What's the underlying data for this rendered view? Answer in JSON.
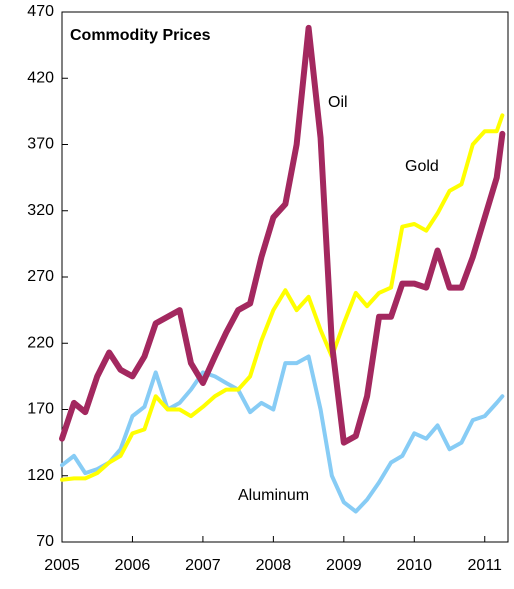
{
  "chart_data": {
    "type": "line",
    "title": "Commodity Prices",
    "x": [
      2005,
      2005.17,
      2005.33,
      2005.5,
      2005.67,
      2005.83,
      2006,
      2006.17,
      2006.33,
      2006.5,
      2006.67,
      2006.83,
      2007,
      2007.17,
      2007.33,
      2007.5,
      2007.67,
      2007.83,
      2008,
      2008.17,
      2008.33,
      2008.5,
      2008.67,
      2008.83,
      2009,
      2009.17,
      2009.33,
      2009.5,
      2009.67,
      2009.83,
      2010,
      2010.17,
      2010.33,
      2010.5,
      2010.67,
      2010.83,
      2011,
      2011.17,
      2011.25
    ],
    "series": [
      {
        "name": "Oil",
        "color": "#a3285f",
        "values": [
          148,
          175,
          168,
          195,
          213,
          200,
          195,
          210,
          235,
          240,
          245,
          205,
          190,
          210,
          228,
          245,
          250,
          285,
          315,
          325,
          370,
          458,
          375,
          220,
          145,
          150,
          180,
          240,
          240,
          265,
          265,
          262,
          290,
          262,
          262,
          285,
          315,
          345,
          378
        ]
      },
      {
        "name": "Gold",
        "color": "#ffff00",
        "values": [
          117,
          118,
          118,
          122,
          130,
          135,
          152,
          155,
          180,
          170,
          170,
          165,
          172,
          180,
          185,
          185,
          195,
          222,
          245,
          260,
          245,
          255,
          230,
          210,
          235,
          258,
          248,
          258,
          262,
          308,
          310,
          305,
          318,
          335,
          340,
          370,
          380,
          380,
          392
        ]
      },
      {
        "name": "Aluminum",
        "color": "#87ccf5",
        "values": [
          128,
          135,
          122,
          125,
          130,
          140,
          165,
          172,
          198,
          170,
          175,
          185,
          198,
          195,
          190,
          185,
          168,
          175,
          170,
          205,
          205,
          210,
          170,
          120,
          100,
          93,
          102,
          115,
          130,
          135,
          152,
          148,
          158,
          140,
          145,
          162,
          165,
          175,
          180
        ]
      }
    ],
    "xlim": [
      2005,
      2011.33
    ],
    "xticks": [
      2005,
      2006,
      2007,
      2008,
      2009,
      2010,
      2011
    ],
    "ylim": [
      70,
      470
    ],
    "yticks": [
      70,
      120,
      170,
      220,
      270,
      320,
      370,
      420,
      470
    ]
  }
}
